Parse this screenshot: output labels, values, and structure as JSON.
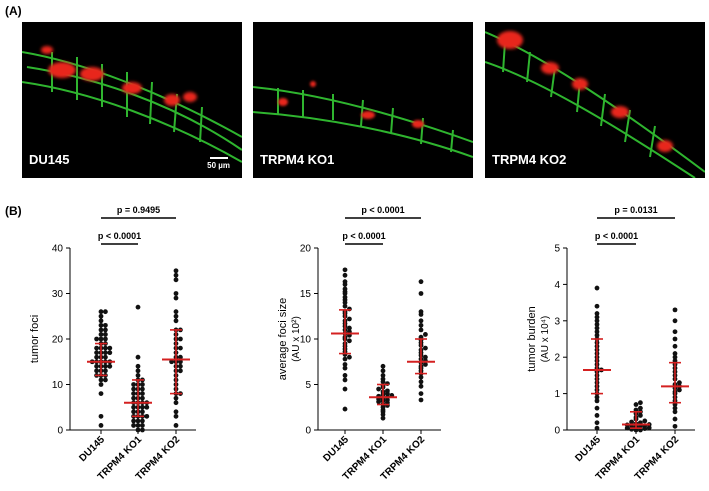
{
  "panel_a_label": "(A)",
  "panel_b_label": "(B)",
  "micrographs": [
    {
      "label": "DU145",
      "scale_label": "50 µm"
    },
    {
      "label": "TRPM4 KO1"
    },
    {
      "label": "TRPM4 KO2"
    }
  ],
  "colors": {
    "bar_red": "#d42020",
    "point": "#111111",
    "vessel_green": "#3ccf3c",
    "tumor_red": "#e8261c"
  },
  "chart_data": [
    {
      "type": "scatter",
      "ylabel": "tumor foci",
      "ylabel_sub": "",
      "ylim": [
        0,
        40
      ],
      "yticks": [
        "0",
        "10",
        "20",
        "30",
        "40"
      ],
      "categories": [
        "DU145",
        "TRPM4 KO1",
        "TRPM4 KO2"
      ],
      "summary": [
        {
          "median": 15,
          "q1": 12,
          "q3": 19
        },
        {
          "median": 6,
          "q1": 3,
          "q3": 11
        },
        {
          "median": 15.5,
          "q1": 8,
          "q3": 22
        }
      ],
      "points": [
        [
          1,
          3,
          8,
          10,
          11,
          11,
          12,
          12,
          12,
          13,
          13,
          13,
          14,
          14,
          14,
          14,
          15,
          15,
          15,
          15,
          15,
          16,
          16,
          16,
          17,
          17,
          17,
          17,
          18,
          18,
          18,
          18,
          19,
          19,
          20,
          20,
          20,
          21,
          21,
          22,
          22,
          23,
          23,
          24,
          25,
          26,
          26
        ],
        [
          0,
          0,
          1,
          1,
          1,
          2,
          2,
          2,
          3,
          3,
          3,
          3,
          4,
          4,
          4,
          5,
          5,
          5,
          5,
          6,
          6,
          6,
          6,
          7,
          7,
          7,
          8,
          8,
          8,
          9,
          9,
          9,
          10,
          10,
          10,
          11,
          11,
          12,
          13,
          14,
          16,
          27
        ],
        [
          1,
          3,
          4,
          6,
          7,
          8,
          8,
          9,
          10,
          11,
          12,
          13,
          13,
          14,
          14,
          15,
          15,
          15,
          16,
          16,
          17,
          18,
          18,
          19,
          20,
          20,
          21,
          22,
          22,
          24,
          25,
          26,
          29,
          30,
          33,
          34,
          35
        ]
      ],
      "sig": [
        {
          "label": "p < 0.0001",
          "from": 0,
          "to": 1
        },
        {
          "label": "p = 0.9495",
          "from": 0,
          "to": 2
        }
      ]
    },
    {
      "type": "scatter",
      "ylabel": "average foci size",
      "ylabel_sub": "(AU x 10²)",
      "ylim": [
        0,
        20
      ],
      "yticks": [
        "0",
        "5",
        "10",
        "15",
        "20"
      ],
      "categories": [
        "DU145",
        "TRPM4 KO1",
        "TRPM4 KO2"
      ],
      "summary": [
        {
          "median": 10.6,
          "q1": 8.4,
          "q3": 13.2
        },
        {
          "median": 3.6,
          "q1": 2.8,
          "q3": 5.0
        },
        {
          "median": 7.5,
          "q1": 6.2,
          "q3": 10.0
        }
      ],
      "points": [
        [
          2.3,
          4.5,
          5.5,
          6.0,
          6.8,
          7.2,
          7.8,
          8.0,
          8.3,
          8.6,
          8.9,
          9.2,
          9.5,
          9.8,
          10.0,
          10.2,
          10.4,
          10.6,
          10.8,
          11.0,
          11.2,
          11.4,
          11.7,
          12.0,
          12.2,
          12.5,
          12.8,
          13.0,
          13.3,
          13.6,
          14.0,
          14.3,
          14.6,
          15.0,
          15.2,
          15.5,
          16.0,
          16.3,
          17.0,
          17.6
        ],
        [
          1.3,
          1.7,
          2.0,
          2.2,
          2.5,
          2.7,
          2.8,
          3.0,
          3.1,
          3.2,
          3.3,
          3.4,
          3.5,
          3.6,
          3.7,
          3.8,
          3.9,
          4.0,
          4.2,
          4.3,
          4.5,
          4.7,
          4.9,
          5.1,
          5.3,
          5.6,
          6.0,
          6.5,
          7.0
        ],
        [
          3.3,
          4.0,
          4.8,
          5.3,
          5.8,
          6.2,
          6.5,
          6.8,
          7.0,
          7.2,
          7.4,
          7.6,
          7.8,
          8.0,
          8.2,
          8.5,
          8.8,
          9.0,
          9.3,
          9.6,
          9.9,
          10.2,
          10.5,
          11.0,
          11.5,
          12.0,
          12.7,
          13.0,
          15.0,
          16.3
        ]
      ],
      "sig": [
        {
          "label": "p < 0.0001",
          "from": 0,
          "to": 1
        },
        {
          "label": "p < 0.0001",
          "from": 0,
          "to": 2
        }
      ]
    },
    {
      "type": "scatter",
      "ylabel": "tumor burden",
      "ylabel_sub": "(AU x 10⁴)",
      "ylim": [
        0,
        5
      ],
      "yticks": [
        "0",
        "1",
        "2",
        "3",
        "4",
        "5"
      ],
      "categories": [
        "DU145",
        "TRPM4 KO1",
        "TRPM4 KO2"
      ],
      "summary": [
        {
          "median": 1.65,
          "q1": 1.0,
          "q3": 2.5
        },
        {
          "median": 0.15,
          "q1": 0.05,
          "q3": 0.5
        },
        {
          "median": 1.2,
          "q1": 0.75,
          "q3": 1.85
        }
      ],
      "points": [
        [
          0.05,
          0.2,
          0.4,
          0.6,
          0.8,
          0.9,
          1.0,
          1.1,
          1.2,
          1.3,
          1.4,
          1.5,
          1.6,
          1.65,
          1.7,
          1.8,
          1.9,
          2.0,
          2.1,
          2.2,
          2.3,
          2.4,
          2.5,
          2.6,
          2.7,
          2.8,
          2.9,
          3.0,
          3.1,
          3.2,
          3.4,
          3.9
        ],
        [
          0.0,
          0.0,
          0.02,
          0.04,
          0.05,
          0.06,
          0.08,
          0.1,
          0.1,
          0.12,
          0.14,
          0.15,
          0.17,
          0.2,
          0.22,
          0.25,
          0.3,
          0.35,
          0.4,
          0.45,
          0.5,
          0.55,
          0.6,
          0.7,
          0.75
        ],
        [
          0.1,
          0.3,
          0.5,
          0.6,
          0.7,
          0.8,
          0.9,
          1.0,
          1.05,
          1.1,
          1.15,
          1.2,
          1.25,
          1.3,
          1.4,
          1.5,
          1.6,
          1.7,
          1.8,
          1.9,
          2.0,
          2.1,
          2.3,
          2.5,
          2.7,
          3.0,
          3.3
        ]
      ],
      "sig": [
        {
          "label": "p < 0.0001",
          "from": 0,
          "to": 1
        },
        {
          "label": "p = 0.0131",
          "from": 0,
          "to": 2
        }
      ]
    }
  ]
}
